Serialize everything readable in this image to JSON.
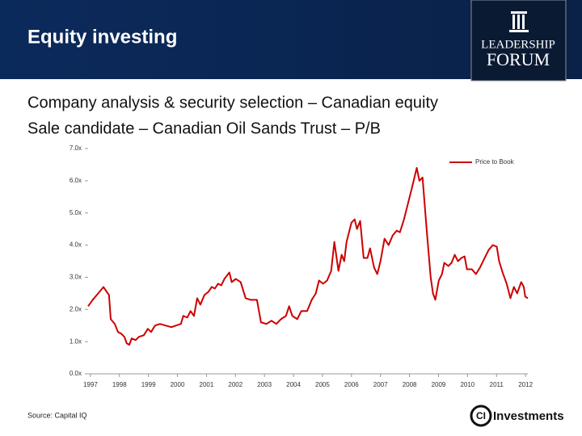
{
  "header": {
    "title": "Equity investing",
    "logo_line1": "LEADERSHIP",
    "logo_line2": "FORUM"
  },
  "subtitles": [
    "Company analysis & security selection – Canadian equity",
    "Sale candidate – Canadian Oil Sands Trust – P/B"
  ],
  "chart_data": {
    "type": "line",
    "x": [
      1996.92,
      1997.08,
      1997.22,
      1997.36,
      1997.45,
      1997.56,
      1997.64,
      1997.7,
      1997.84,
      1997.95,
      1998.06,
      1998.17,
      1998.25,
      1998.34,
      1998.42,
      1998.56,
      1998.67,
      1998.84,
      1998.98,
      1999.09,
      1999.23,
      1999.4,
      1999.59,
      1999.79,
      1999.95,
      2000.12,
      2000.2,
      2000.34,
      2000.45,
      2000.57,
      2000.68,
      2000.79,
      2000.93,
      2001.07,
      2001.18,
      2001.29,
      2001.4,
      2001.51,
      2001.62,
      2001.79,
      2001.87,
      2002.01,
      2002.18,
      2002.35,
      2002.52,
      2002.74,
      2002.88,
      2003.07,
      2003.24,
      2003.41,
      2003.57,
      2003.74,
      2003.85,
      2003.96,
      2004.13,
      2004.27,
      2004.47,
      2004.63,
      2004.77,
      2004.88,
      2005.02,
      2005.16,
      2005.3,
      2005.41,
      2005.55,
      2005.66,
      2005.75,
      2005.83,
      2006,
      2006.11,
      2006.19,
      2006.3,
      2006.42,
      2006.55,
      2006.64,
      2006.78,
      2006.89,
      2007,
      2007.14,
      2007.28,
      2007.42,
      2007.56,
      2007.67,
      2007.81,
      2007.95,
      2008.09,
      2008.25,
      2008.34,
      2008.45,
      2008.59,
      2008.73,
      2008.81,
      2008.89,
      2009.01,
      2009.12,
      2009.2,
      2009.34,
      2009.45,
      2009.56,
      2009.67,
      2009.79,
      2009.9,
      2009.98,
      2010.15,
      2010.29,
      2010.43,
      2010.59,
      2010.73,
      2010.87,
      2011.01,
      2011.09,
      2011.21,
      2011.35,
      2011.48,
      2011.6,
      2011.71,
      2011.85,
      2011.94,
      2011.99,
      2012.08
    ],
    "series": [
      {
        "name": "Price to Book",
        "color": "#cc0000",
        "values": [
          2.1,
          2.3,
          2.45,
          2.6,
          2.7,
          2.55,
          2.45,
          1.7,
          1.55,
          1.3,
          1.25,
          1.15,
          0.95,
          0.9,
          1.1,
          1.05,
          1.15,
          1.2,
          1.4,
          1.3,
          1.5,
          1.55,
          1.5,
          1.45,
          1.5,
          1.55,
          1.8,
          1.75,
          1.95,
          1.8,
          2.35,
          2.15,
          2.45,
          2.55,
          2.7,
          2.65,
          2.8,
          2.75,
          2.95,
          3.15,
          2.85,
          2.95,
          2.85,
          2.35,
          2.3,
          2.3,
          1.6,
          1.55,
          1.65,
          1.55,
          1.7,
          1.8,
          2.1,
          1.8,
          1.7,
          1.95,
          1.95,
          2.3,
          2.5,
          2.9,
          2.8,
          2.9,
          3.2,
          4.1,
          3.2,
          3.7,
          3.5,
          4.1,
          4.7,
          4.8,
          4.5,
          4.75,
          3.6,
          3.6,
          3.9,
          3.3,
          3.1,
          3.5,
          4.2,
          4.0,
          4.3,
          4.45,
          4.4,
          4.8,
          5.3,
          5.8,
          6.4,
          6.0,
          6.1,
          4.5,
          3.0,
          2.5,
          2.3,
          2.9,
          3.1,
          3.45,
          3.35,
          3.45,
          3.7,
          3.5,
          3.6,
          3.65,
          3.25,
          3.25,
          3.1,
          3.3,
          3.6,
          3.85,
          4.0,
          3.95,
          3.5,
          3.15,
          2.8,
          2.35,
          2.7,
          2.5,
          2.85,
          2.7,
          2.4,
          2.35
        ]
      }
    ],
    "xlim": [
      1996.92,
      2012.08
    ],
    "xticks": [
      1997,
      1998,
      1999,
      2000,
      2001,
      2002,
      2003,
      2004,
      2005,
      2006,
      2007,
      2008,
      2009,
      2010,
      2011,
      2012
    ],
    "ylim": [
      0,
      7
    ],
    "yticks": [
      {
        "value": 0,
        "label": "0.0x"
      },
      {
        "value": 1,
        "label": "1.0x"
      },
      {
        "value": 2,
        "label": "2.0x"
      },
      {
        "value": 3,
        "label": "3.0x"
      },
      {
        "value": 4,
        "label": "4.0x"
      },
      {
        "value": 5,
        "label": "5.0x"
      },
      {
        "value": 6,
        "label": "6.0x"
      },
      {
        "value": 7,
        "label": "7.0x"
      }
    ],
    "legend": "top-right"
  },
  "source": "Source: Capital IQ",
  "footer_logo": {
    "mark": "CI",
    "name": "Investments"
  }
}
